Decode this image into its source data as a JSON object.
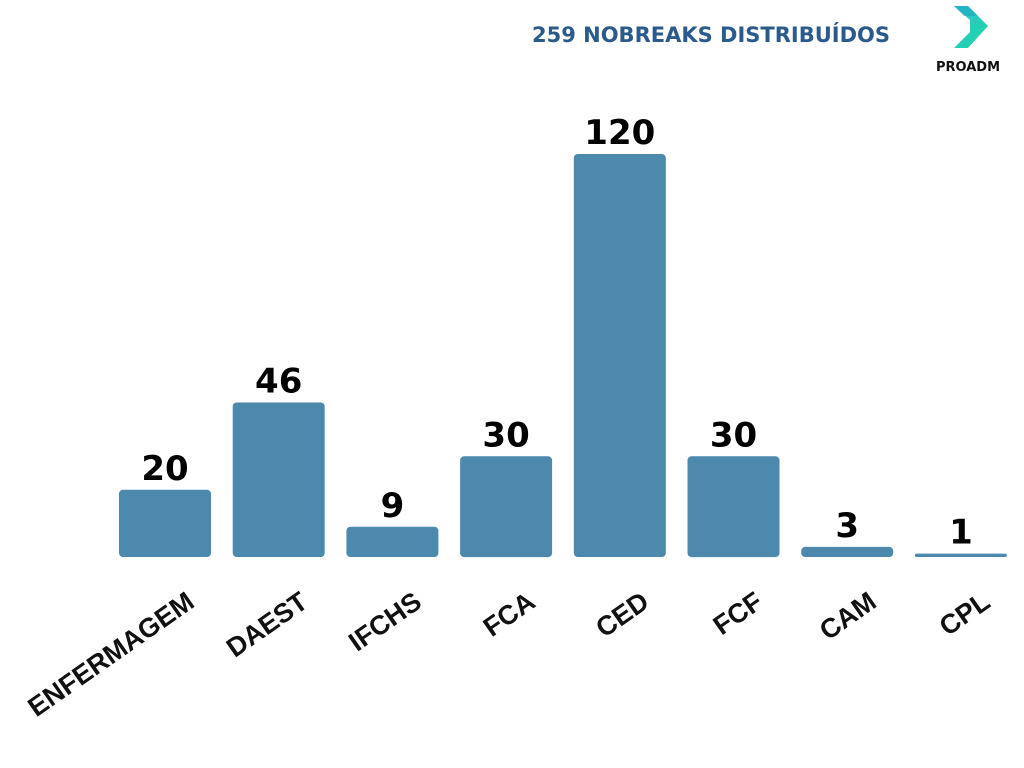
{
  "header": {
    "title": "259 NOBREAKS DISTRIBUÍDOS",
    "logo_text": "PROADM",
    "logo_icon": "play-chevron-icon"
  },
  "colors": {
    "title": "#2b5a8c",
    "bar": "#4d89ad",
    "logo_gradient_start": "#2ec5d6",
    "logo_gradient_end": "#1fd6a0",
    "text": "#111111"
  },
  "chart_data": {
    "type": "bar",
    "title": "259 NOBREAKS DISTRIBUÍDOS",
    "xlabel": "",
    "ylabel": "",
    "categories": [
      "ENFERMAGEM",
      "DAEST",
      "IFCHS",
      "FCA",
      "CED",
      "FCF",
      "CAM",
      "CPL"
    ],
    "values": [
      20,
      46,
      9,
      30,
      120,
      30,
      3,
      1
    ],
    "ylim": [
      0,
      120
    ],
    "grid": false,
    "legend": "none",
    "data_labels": true,
    "axis_visible": false
  }
}
